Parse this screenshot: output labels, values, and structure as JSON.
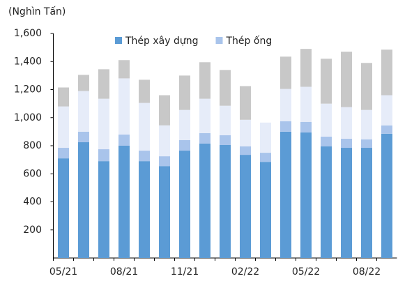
{
  "chart_data": {
    "type": "stacked_bar",
    "title": "(Nghìn Tấn)",
    "categories": [
      "05/21",
      null,
      null,
      "08/21",
      null,
      null,
      "11/21",
      null,
      null,
      "02/22",
      null,
      null,
      "05/22",
      null,
      null,
      "08/22",
      null
    ],
    "series": [
      {
        "name": "Thép xây dựng",
        "color": "#5b9bd5",
        "values": [
          710,
          825,
          690,
          800,
          690,
          655,
          765,
          815,
          805,
          735,
          685,
          900,
          895,
          795,
          785,
          785,
          885
        ]
      },
      {
        "name": "Thép ống",
        "color": "#a9c4eb",
        "values": [
          75,
          75,
          85,
          80,
          75,
          70,
          75,
          75,
          70,
          60,
          65,
          75,
          75,
          70,
          65,
          60,
          60
        ]
      },
      {
        "color": "#e6ecf9",
        "values": [
          295,
          290,
          360,
          400,
          340,
          220,
          215,
          245,
          210,
          190,
          215,
          230,
          250,
          235,
          225,
          210,
          215
        ]
      },
      {
        "color": "#c8c8c8",
        "values": [
          135,
          115,
          210,
          130,
          165,
          215,
          245,
          260,
          255,
          240,
          0,
          230,
          270,
          320,
          395,
          335,
          325
        ]
      }
    ],
    "ylim": [
      0,
      1600
    ],
    "yticks": [
      200,
      400,
      600,
      800,
      {
        "value": 1000,
        "label": "1,000"
      },
      {
        "value": 1200,
        "label": "1,200"
      },
      {
        "value": 1400,
        "label": "1,400"
      },
      {
        "value": 1600,
        "label": "1,600"
      }
    ],
    "legend": "top"
  }
}
